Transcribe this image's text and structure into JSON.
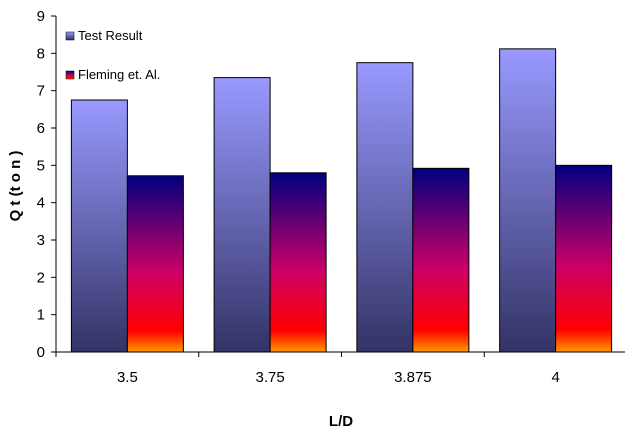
{
  "chart_data": {
    "type": "bar",
    "title": "",
    "xlabel": "L/D",
    "ylabel": "Q t (t o n )",
    "categories": [
      "3.5",
      "3.75",
      "3.875",
      "4"
    ],
    "series": [
      {
        "name": "Test Result",
        "values": [
          6.75,
          7.35,
          7.75,
          8.12
        ]
      },
      {
        "name": "Fleming et. Al.",
        "values": [
          4.72,
          4.8,
          4.92,
          5.0
        ]
      }
    ],
    "ylim": [
      0,
      9
    ],
    "yticks": [
      0,
      1,
      2,
      3,
      4,
      5,
      6,
      7,
      8,
      9
    ],
    "grid": false,
    "legend": "top-left inside",
    "colors": {
      "test_top": "#9999ff",
      "test_bottom": "#333366",
      "fleming_top": "#000080",
      "fleming_mid": "#cc0066",
      "fleming_bottom": "#ff9900"
    }
  }
}
